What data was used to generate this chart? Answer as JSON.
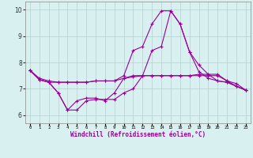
{
  "x": [
    0,
    1,
    2,
    3,
    4,
    5,
    6,
    7,
    8,
    9,
    10,
    11,
    12,
    13,
    14,
    15,
    16,
    17,
    18,
    19,
    20,
    21,
    22,
    23
  ],
  "line1": [
    7.7,
    7.4,
    7.3,
    7.25,
    7.25,
    7.25,
    7.25,
    7.3,
    7.3,
    7.3,
    7.4,
    7.45,
    7.5,
    7.5,
    7.5,
    7.5,
    7.5,
    7.5,
    7.55,
    7.55,
    7.55,
    7.3,
    7.2,
    6.95
  ],
  "line2": [
    7.7,
    7.35,
    7.25,
    6.85,
    6.2,
    6.2,
    6.55,
    6.6,
    6.6,
    6.6,
    6.85,
    7.0,
    7.5,
    8.45,
    8.6,
    9.95,
    9.45,
    8.4,
    7.9,
    7.55,
    7.3,
    7.25,
    7.1,
    6.95
  ],
  "line3": [
    7.7,
    7.35,
    7.25,
    6.85,
    6.2,
    6.55,
    6.65,
    6.65,
    6.55,
    6.85,
    7.4,
    7.5,
    7.5,
    7.5,
    7.5,
    7.5,
    7.5,
    7.5,
    7.5,
    7.5,
    7.5,
    7.3,
    7.1,
    6.95
  ],
  "line4": [
    7.7,
    7.35,
    7.25,
    7.25,
    7.25,
    7.25,
    7.25,
    7.3,
    7.3,
    7.3,
    7.5,
    8.45,
    8.6,
    9.45,
    9.95,
    9.95,
    9.45,
    8.4,
    7.65,
    7.4,
    7.3,
    7.25,
    7.1,
    6.95
  ],
  "line_color": "#990099",
  "bg_color": "#d8f0f0",
  "grid_color": "#b8cece",
  "yticks": [
    6,
    7,
    8,
    9,
    10
  ],
  "xlabel": "Windchill (Refroidissement éolien,°C)",
  "ylim": [
    5.7,
    10.3
  ],
  "xlim": [
    -0.5,
    23.5
  ],
  "figsize": [
    3.2,
    2.0
  ],
  "dpi": 100
}
